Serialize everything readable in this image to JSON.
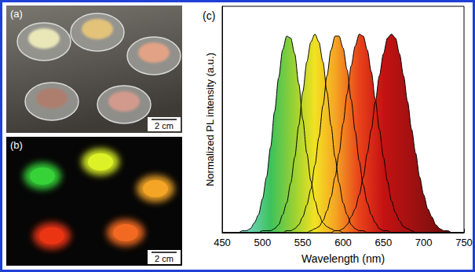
{
  "chart_data": {
    "type": "line",
    "title": "(c)",
    "x_label": "Wavelength (nm)",
    "y_label": "Normalized PL intensity (a.u.)",
    "x": [
      450,
      455,
      460,
      465,
      470,
      475,
      480,
      485,
      490,
      495,
      500,
      505,
      510,
      515,
      520,
      525,
      530,
      535,
      540,
      545,
      550,
      555,
      560,
      565,
      570,
      575,
      580,
      585,
      590,
      595,
      600,
      605,
      610,
      615,
      620,
      625,
      630,
      635,
      640,
      645,
      650,
      655,
      660,
      665,
      670,
      675,
      680,
      685,
      690,
      695,
      700,
      705,
      710,
      715,
      720,
      725,
      730,
      735,
      740,
      745,
      750
    ],
    "series": [
      {
        "color": "#000000",
        "values": [
          0,
          0,
          0,
          0,
          0,
          0.01,
          0.01,
          0.02,
          0.05,
          0.09,
          0.17,
          0.28,
          0.43,
          0.61,
          0.78,
          0.92,
          0.99,
          0.98,
          0.9,
          0.75,
          0.57,
          0.4,
          0.26,
          0.16,
          0.09,
          0.05,
          0.03,
          0.02,
          0.01,
          0.01,
          0,
          0,
          0,
          0,
          0,
          0,
          0,
          0,
          0,
          0,
          0,
          0,
          0,
          0,
          0,
          0,
          0,
          0,
          0,
          0,
          0,
          0,
          0,
          0,
          0,
          0,
          0,
          0,
          0,
          0,
          0
        ]
      },
      {
        "color": "#000000",
        "values": [
          0,
          0,
          0,
          0,
          0,
          0,
          0,
          0,
          0,
          0,
          0.01,
          0.01,
          0.01,
          0.02,
          0.04,
          0.09,
          0.15,
          0.25,
          0.38,
          0.54,
          0.71,
          0.86,
          0.96,
          1,
          0.96,
          0.86,
          0.71,
          0.54,
          0.38,
          0.25,
          0.15,
          0.09,
          0.04,
          0.02,
          0.01,
          0.01,
          0,
          0,
          0,
          0,
          0,
          0,
          0,
          0,
          0,
          0,
          0,
          0,
          0,
          0,
          0,
          0,
          0,
          0,
          0,
          0,
          0,
          0,
          0,
          0,
          0
        ]
      },
      {
        "color": "#000000",
        "values": [
          0,
          0,
          0,
          0,
          0,
          0,
          0,
          0,
          0,
          0,
          0,
          0,
          0,
          0,
          0,
          0,
          0.01,
          0.01,
          0.02,
          0.04,
          0.08,
          0.14,
          0.22,
          0.34,
          0.48,
          0.64,
          0.79,
          0.92,
          0.99,
          0.99,
          0.93,
          0.82,
          0.67,
          0.51,
          0.36,
          0.24,
          0.15,
          0.09,
          0.05,
          0.02,
          0.01,
          0.01,
          0,
          0,
          0,
          0,
          0,
          0,
          0,
          0,
          0,
          0,
          0,
          0,
          0,
          0,
          0,
          0,
          0,
          0,
          0
        ]
      },
      {
        "color": "#000000",
        "values": [
          0,
          0,
          0,
          0,
          0,
          0,
          0,
          0,
          0,
          0,
          0,
          0,
          0,
          0,
          0,
          0,
          0,
          0,
          0,
          0,
          0,
          0,
          0.01,
          0.02,
          0.03,
          0.06,
          0.11,
          0.18,
          0.28,
          0.4,
          0.55,
          0.7,
          0.84,
          0.94,
          1,
          0.99,
          0.92,
          0.81,
          0.67,
          0.52,
          0.38,
          0.26,
          0.16,
          0.1,
          0.06,
          0.03,
          0.02,
          0.01,
          0,
          0,
          0,
          0,
          0,
          0,
          0,
          0,
          0,
          0,
          0,
          0,
          0
        ]
      },
      {
        "color": "#000000",
        "values": [
          0,
          0,
          0,
          0,
          0,
          0,
          0,
          0,
          0,
          0,
          0,
          0,
          0,
          0,
          0,
          0,
          0,
          0,
          0,
          0,
          0,
          0,
          0,
          0,
          0,
          0,
          0,
          0,
          0.01,
          0.01,
          0.02,
          0.04,
          0.08,
          0.12,
          0.19,
          0.28,
          0.4,
          0.52,
          0.66,
          0.79,
          0.9,
          0.98,
          1,
          0.98,
          0.9,
          0.79,
          0.66,
          0.52,
          0.4,
          0.28,
          0.19,
          0.12,
          0.08,
          0.04,
          0.02,
          0.01,
          0.01,
          0,
          0,
          0,
          0
        ]
      }
    ],
    "xlim": [
      450,
      750
    ],
    "xticks": [
      450,
      500,
      550,
      600,
      650,
      700,
      750
    ],
    "ylim": [
      0,
      1.14
    ],
    "grid": false,
    "tick_labels": "x"
  },
  "panels": [
    {
      "label": "(a)",
      "scale_bar": "2 cm"
    },
    {
      "label": "(b)",
      "scale_bar": "2 cm"
    }
  ]
}
